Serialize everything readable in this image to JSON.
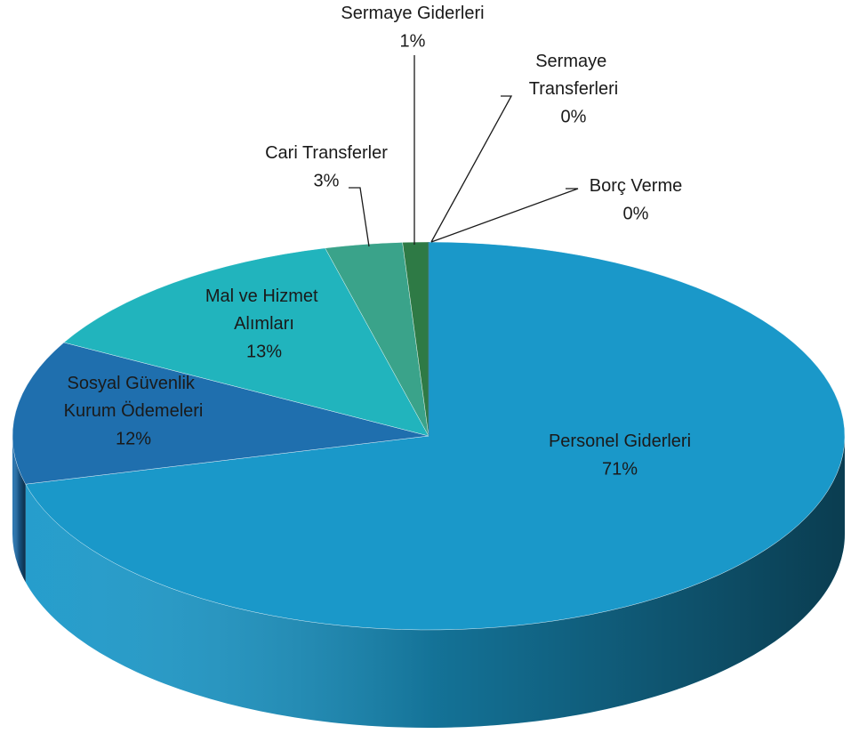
{
  "chart_data": {
    "type": "pie3d",
    "categories": [
      "Personel Giderleri",
      "Sosyal Güvenlik Kurum Ödemeleri",
      "Mal ve Hizmet Alımları",
      "Cari Transferler",
      "Sermaye Giderleri",
      "Sermaye Transferleri",
      "Borç Verme"
    ],
    "values": [
      71,
      12,
      13,
      3,
      1,
      0,
      0
    ],
    "value_labels": [
      "71%",
      "12%",
      "13%",
      "3%",
      "1%",
      "0%",
      "0%"
    ],
    "colors": [
      "#1a98c9",
      "#1f6fae",
      "#21b4bd",
      "#3aa38a",
      "#2e7a45",
      "#2a6f8f",
      "#256a86"
    ]
  }
}
